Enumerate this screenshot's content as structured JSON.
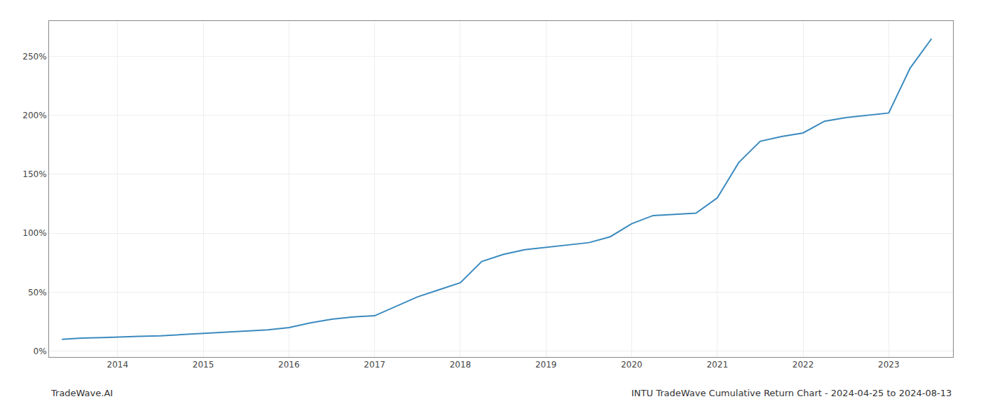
{
  "chart_data": {
    "type": "line",
    "title": "INTU TradeWave Cumulative Return Chart - 2024-04-25 to 2024-08-13",
    "annotations": [
      "TradeWave.AI"
    ],
    "color": "#3a8abf",
    "grid": true,
    "x": [
      2013.35,
      2013.58,
      2013.83,
      2014.0,
      2014.25,
      2014.5,
      2014.75,
      2015.0,
      2015.25,
      2015.5,
      2015.75,
      2016.0,
      2016.25,
      2016.5,
      2016.75,
      2017.0,
      2017.25,
      2017.5,
      2017.75,
      2018.0,
      2018.25,
      2018.5,
      2018.75,
      2019.0,
      2019.25,
      2019.5,
      2019.75,
      2020.0,
      2020.25,
      2020.5,
      2020.75,
      2021.0,
      2021.25,
      2021.5,
      2021.75,
      2022.0,
      2022.25,
      2022.5,
      2022.75,
      2023.0,
      2023.25,
      2023.5
    ],
    "values": [
      10,
      11,
      11.5,
      12,
      12.5,
      13,
      14,
      15,
      16,
      17,
      18,
      20,
      24,
      27,
      29,
      30,
      38,
      46,
      52,
      58,
      76,
      82,
      86,
      88,
      90,
      92,
      97,
      108,
      115,
      116,
      117,
      130,
      160,
      178,
      182,
      185,
      195,
      198,
      200,
      202,
      240,
      265
    ],
    "xlim": [
      2013.2,
      2023.75
    ],
    "xticks": [
      2014,
      2015,
      2016,
      2017,
      2018,
      2019,
      2020,
      2021,
      2022,
      2023
    ],
    "ylim": [
      -5,
      280
    ],
    "yticks": [
      {
        "value": 0,
        "label": "0%"
      },
      {
        "value": 50,
        "label": "50%"
      },
      {
        "value": 100,
        "label": "100%"
      },
      {
        "value": 150,
        "label": "150%"
      },
      {
        "value": 200,
        "label": "200%"
      },
      {
        "value": 250,
        "label": "250%"
      }
    ]
  }
}
